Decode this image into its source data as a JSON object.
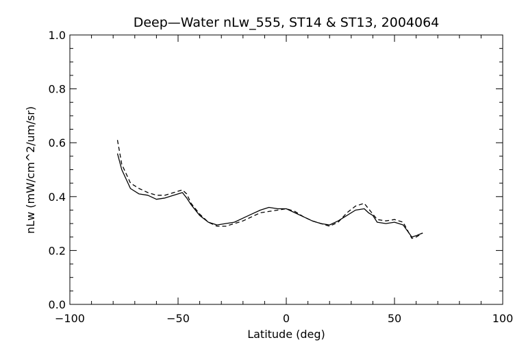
{
  "chart_data": {
    "type": "line",
    "title": "Deep—Water nLw_555, ST14 & ST13, 2004064",
    "xlabel": "Latitude (deg)",
    "ylabel": "nLw (mW/cm^2/um/sr)",
    "xlim": [
      -100,
      100
    ],
    "ylim": [
      0.0,
      1.0
    ],
    "xticks": [
      -100,
      -50,
      0,
      50,
      100
    ],
    "xtick_labels": [
      "−100",
      "−50",
      "0",
      "50",
      "100"
    ],
    "yticks": [
      0.0,
      0.2,
      0.4,
      0.6,
      0.8,
      1.0
    ],
    "ytick_labels": [
      "0.0",
      "0.2",
      "0.4",
      "0.6",
      "0.8",
      "1.0"
    ],
    "grid": false,
    "series": [
      {
        "style": "solid",
        "color": "#000000",
        "x": [
          -78,
          -76,
          -72,
          -68,
          -64,
          -60,
          -56,
          -52,
          -48,
          -46,
          -44,
          -40,
          -36,
          -32,
          -28,
          -24,
          -20,
          -16,
          -12,
          -8,
          -4,
          0,
          4,
          8,
          12,
          16,
          20,
          24,
          28,
          32,
          36,
          38,
          40,
          42,
          46,
          50,
          54,
          58,
          60,
          63
        ],
        "y": [
          0.56,
          0.5,
          0.43,
          0.41,
          0.405,
          0.39,
          0.395,
          0.405,
          0.415,
          0.395,
          0.37,
          0.33,
          0.305,
          0.295,
          0.3,
          0.305,
          0.32,
          0.335,
          0.35,
          0.36,
          0.355,
          0.355,
          0.34,
          0.325,
          0.31,
          0.3,
          0.295,
          0.31,
          0.33,
          0.35,
          0.355,
          0.34,
          0.33,
          0.305,
          0.3,
          0.305,
          0.295,
          0.25,
          0.255,
          0.265
        ]
      },
      {
        "style": "dashed",
        "color": "#000000",
        "x": [
          -78,
          -76,
          -72,
          -68,
          -64,
          -60,
          -56,
          -52,
          -48,
          -46,
          -44,
          -40,
          -36,
          -32,
          -28,
          -24,
          -20,
          -16,
          -12,
          -8,
          -4,
          0,
          4,
          8,
          12,
          16,
          20,
          24,
          28,
          32,
          36,
          38,
          40,
          42,
          46,
          50,
          54,
          58,
          60,
          63
        ],
        "y": [
          0.61,
          0.52,
          0.45,
          0.43,
          0.415,
          0.405,
          0.405,
          0.415,
          0.425,
          0.41,
          0.375,
          0.335,
          0.305,
          0.29,
          0.29,
          0.3,
          0.31,
          0.325,
          0.34,
          0.345,
          0.35,
          0.355,
          0.345,
          0.325,
          0.31,
          0.3,
          0.29,
          0.305,
          0.34,
          0.365,
          0.375,
          0.355,
          0.335,
          0.315,
          0.31,
          0.315,
          0.305,
          0.245,
          0.25,
          0.265
        ]
      }
    ]
  }
}
